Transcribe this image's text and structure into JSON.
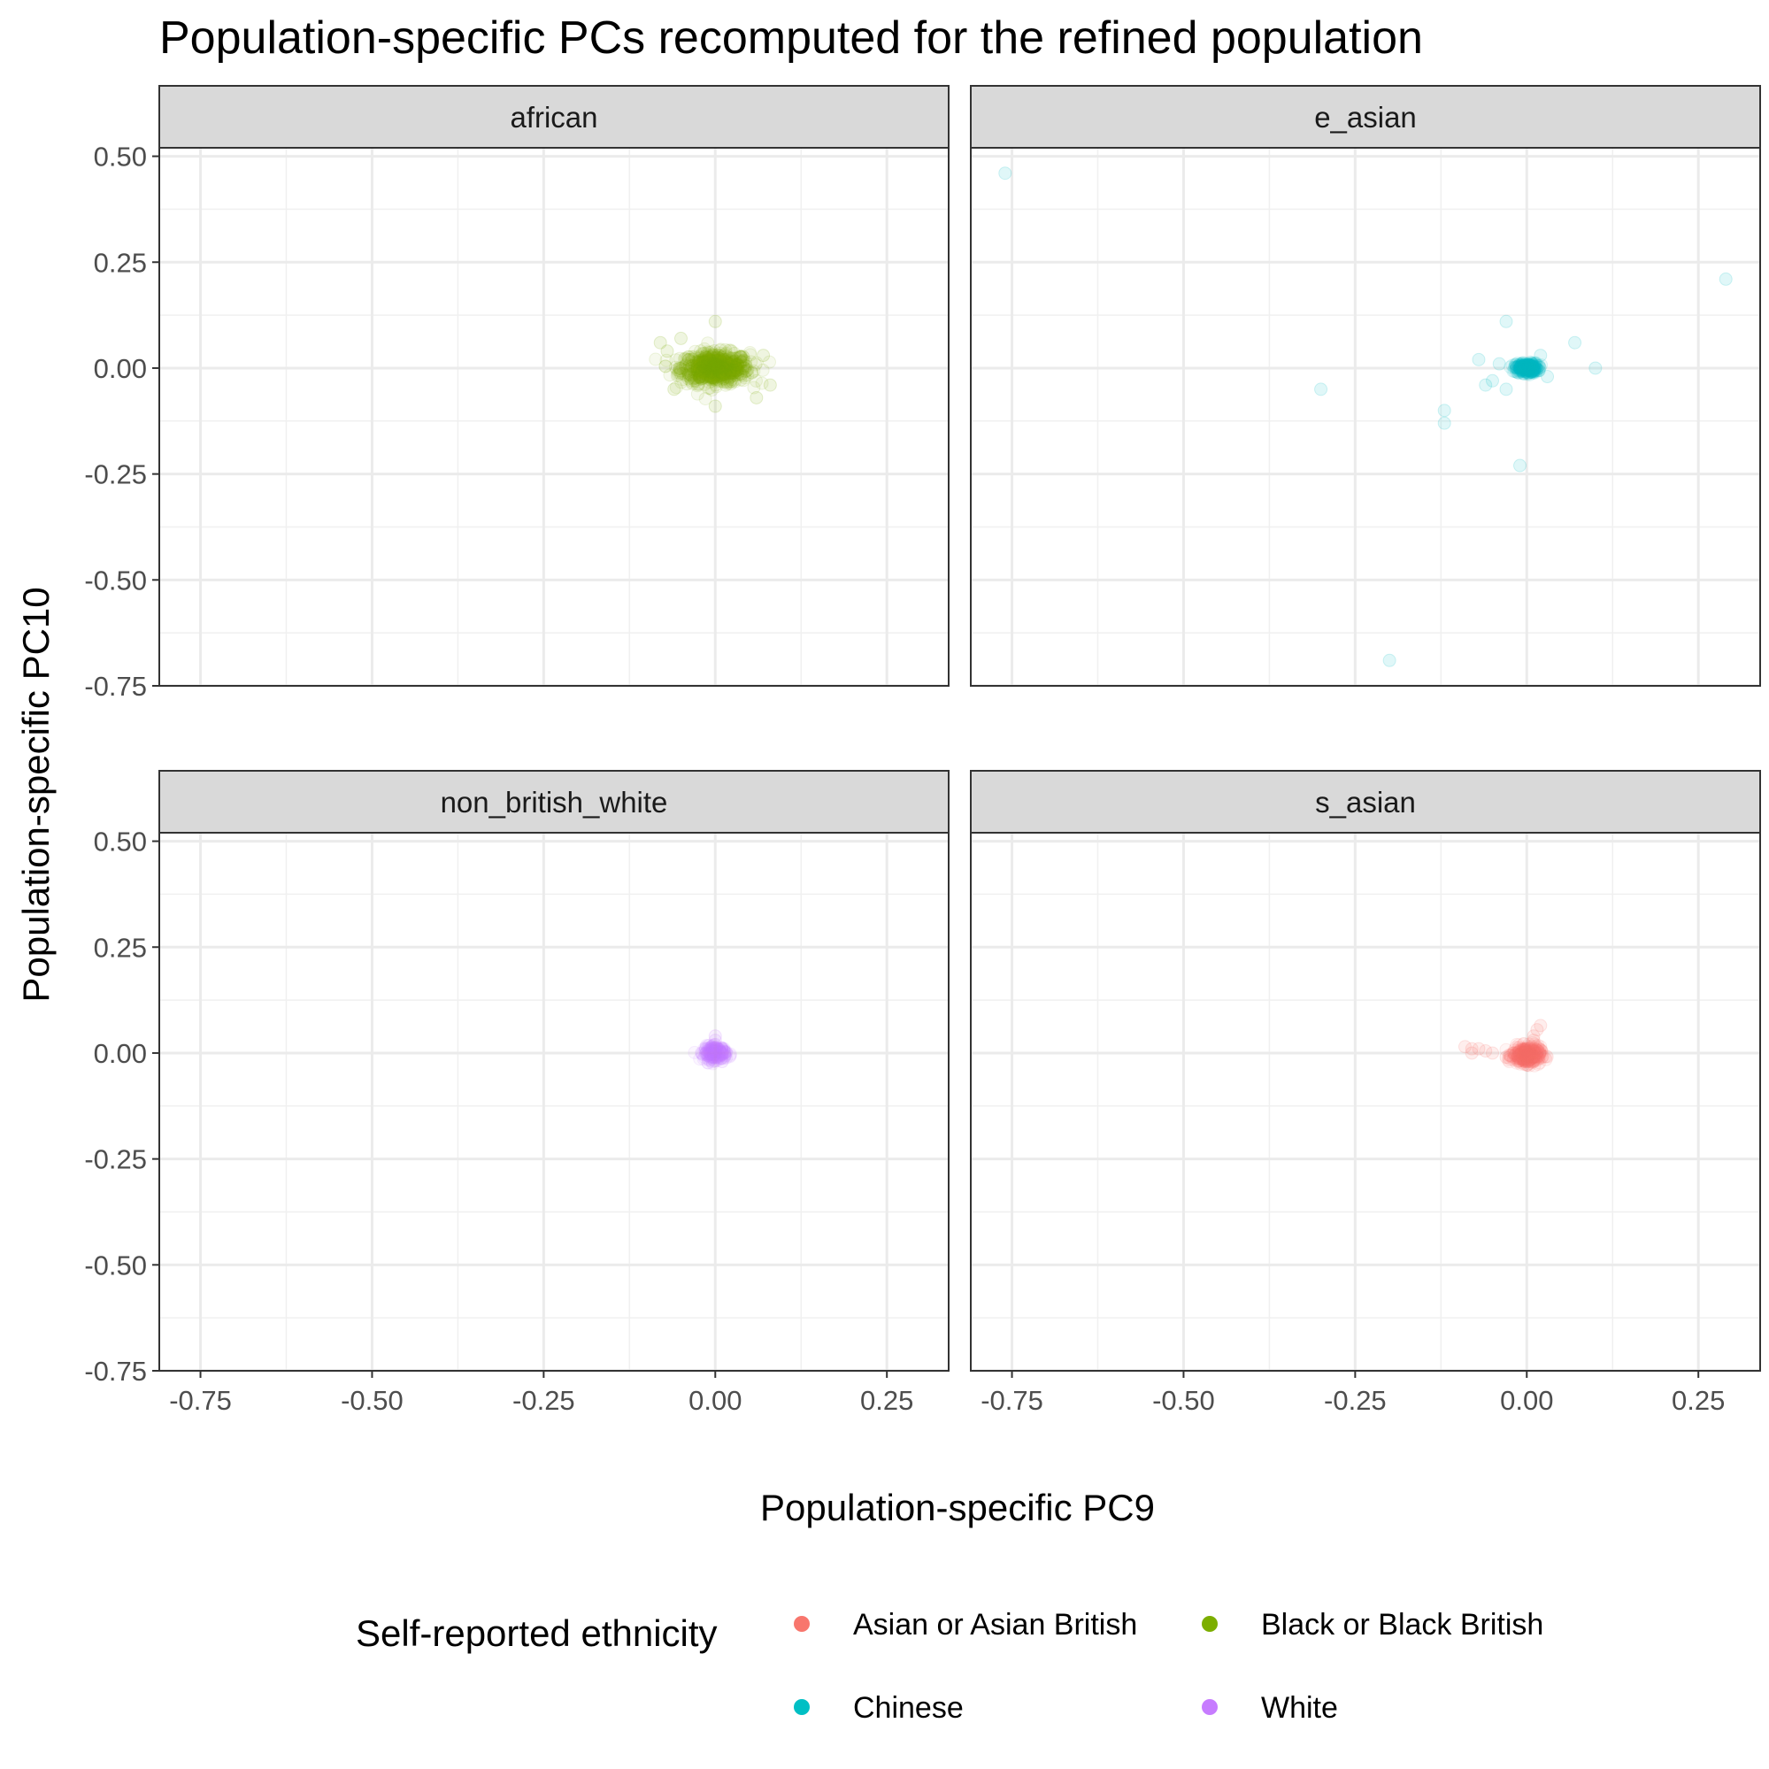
{
  "chart_data": {
    "type": "scatter",
    "title": "Population-specific PCs recomputed for the refined population",
    "xlabel": "Population-specific PC9",
    "ylabel": "Population-specific PC10",
    "xlim": [
      -0.81,
      0.34
    ],
    "ylim": [
      -0.75,
      0.52
    ],
    "x_ticks": [
      -0.75,
      -0.5,
      -0.25,
      0.0,
      0.25
    ],
    "x_tick_labels": [
      "-0.75",
      "-0.50",
      "-0.25",
      "0.00",
      "0.25"
    ],
    "y_ticks": [
      -0.75,
      -0.5,
      -0.25,
      0.0,
      0.25,
      0.5
    ],
    "y_tick_labels": [
      "-0.75",
      "-0.50",
      "-0.25",
      "0.00",
      "0.25",
      "0.50"
    ],
    "grid": true,
    "legend": {
      "title": "Self-reported ethnicity",
      "position": "bottom",
      "entries": [
        {
          "label": "Asian or Asian British",
          "color": "#F8766D"
        },
        {
          "label": "Black or Black British",
          "color": "#7CAE00"
        },
        {
          "label": "Chinese",
          "color": "#00BFC4"
        },
        {
          "label": "White",
          "color": "#C77CFF"
        }
      ]
    },
    "panels": [
      {
        "name": "african",
        "series": [
          {
            "name": "Black or Black British",
            "color": "#7CAE00",
            "cluster": {
              "cx": 0.0,
              "cy": 0.0,
              "sx": 0.025,
              "sy": 0.018,
              "n": 700
            },
            "points": [
              [
                -0.08,
                0.06
              ],
              [
                -0.07,
                0.04
              ],
              [
                0.07,
                0.03
              ],
              [
                0.08,
                -0.04
              ],
              [
                -0.06,
                -0.05
              ],
              [
                0.0,
                0.11
              ],
              [
                0.0,
                -0.09
              ],
              [
                0.06,
                -0.07
              ],
              [
                -0.05,
                0.07
              ]
            ]
          }
        ]
      },
      {
        "name": "e_asian",
        "series": [
          {
            "name": "Chinese",
            "color": "#00BFC4",
            "cluster": {
              "cx": 0.0,
              "cy": 0.0,
              "sx": 0.008,
              "sy": 0.006,
              "n": 300
            },
            "points": [
              [
                -0.76,
                0.46
              ],
              [
                0.29,
                0.21
              ],
              [
                -0.3,
                -0.05
              ],
              [
                -0.2,
                -0.69
              ],
              [
                -0.12,
                -0.1
              ],
              [
                -0.12,
                -0.13
              ],
              [
                -0.03,
                0.11
              ],
              [
                -0.07,
                0.02
              ],
              [
                0.07,
                0.06
              ],
              [
                0.1,
                0.0
              ],
              [
                -0.01,
                -0.23
              ],
              [
                -0.05,
                -0.03
              ],
              [
                -0.03,
                -0.05
              ],
              [
                0.03,
                -0.02
              ],
              [
                -0.06,
                -0.04
              ],
              [
                0.02,
                0.03
              ],
              [
                -0.04,
                0.01
              ]
            ]
          }
        ]
      },
      {
        "name": "non_british_white",
        "series": [
          {
            "name": "White",
            "color": "#C77CFF",
            "cluster": {
              "cx": 0.0,
              "cy": 0.0,
              "sx": 0.008,
              "sy": 0.008,
              "n": 220
            },
            "points": [
              [
                0.0,
                0.04
              ],
              [
                0.0,
                0.03
              ],
              [
                -0.02,
                0.0
              ],
              [
                0.01,
                -0.02
              ],
              [
                0.0,
                0.02
              ]
            ]
          }
        ]
      },
      {
        "name": "s_asian",
        "series": [
          {
            "name": "Asian or Asian British",
            "color": "#F8766D",
            "cluster": {
              "cx": 0.0,
              "cy": -0.005,
              "sx": 0.01,
              "sy": 0.01,
              "n": 350
            },
            "points": [
              [
                -0.09,
                0.015
              ],
              [
                -0.08,
                0.01
              ],
              [
                -0.07,
                0.01
              ],
              [
                -0.08,
                0.0
              ],
              [
                -0.06,
                0.005
              ],
              [
                -0.05,
                0.0
              ],
              [
                -0.03,
                -0.01
              ],
              [
                -0.02,
                0.0
              ],
              [
                0.02,
                0.065
              ],
              [
                0.015,
                0.055
              ],
              [
                0.01,
                0.03
              ],
              [
                0.01,
                0.04
              ],
              [
                0.01,
                -0.02
              ]
            ]
          }
        ]
      }
    ]
  }
}
